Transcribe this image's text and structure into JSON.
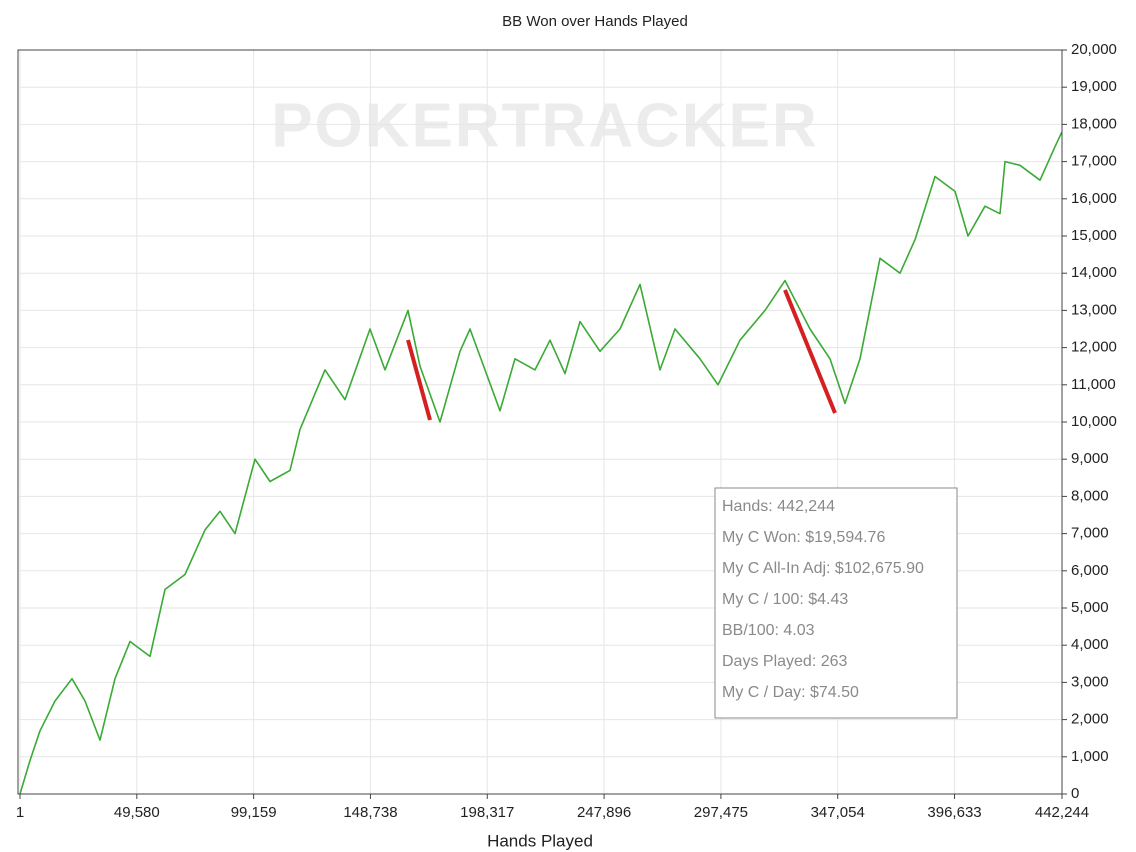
{
  "chart_data": {
    "type": "line",
    "title": "BB Won over Hands Played",
    "x_label": "Hands Played",
    "watermark": "POKERTRACKER",
    "stats": [
      "Hands: 442,244",
      "My C Won: $19,594.76",
      "My C All-In Adj: $102,675.90",
      "My C / 100: $4.43",
      "BB/100: 4.03",
      "Days Played: 263",
      "My C / Day: $74.50"
    ],
    "x": [
      1,
      4244,
      8488,
      14855,
      22070,
      27587,
      33954,
      40320,
      46686,
      55175,
      61541,
      70029,
      78518,
      84884,
      91250,
      99739,
      106105,
      114593,
      118837,
      129448,
      137937,
      148547,
      154914,
      164675,
      169768,
      178256,
      186745,
      190989,
      197355,
      203722,
      210088,
      218576,
      224943,
      231309,
      237675,
      246164,
      254652,
      263140,
      271629,
      277995,
      288606,
      296245,
      305583,
      316193,
      324681,
      335291,
      343780,
      350146,
      356513,
      365001,
      373490,
      379856,
      388344,
      396833,
      402350,
      409566,
      415932,
      418054,
      424420,
      432909,
      439275,
      442244
    ],
    "series": [
      {
        "name": "BB Won",
        "color": "#3aaa35",
        "values": [
          0,
          900,
          1700,
          2500,
          3100,
          2500,
          1450,
          3100,
          4100,
          3700,
          5500,
          5900,
          7100,
          7600,
          7000,
          9000,
          8400,
          8700,
          9800,
          11400,
          10600,
          12500,
          11400,
          13000,
          11500,
          10000,
          11900,
          12500,
          11400,
          10300,
          11700,
          11400,
          12200,
          11300,
          12700,
          11900,
          12500,
          13700,
          11400,
          12500,
          11700,
          11000,
          12200,
          13000,
          13800,
          12500,
          11700,
          10500,
          11700,
          14400,
          14000,
          14900,
          16600,
          16200,
          15000,
          15800,
          15600,
          17000,
          16900,
          16500,
          17400,
          17800
        ]
      }
    ],
    "xlim": [
      1,
      442244
    ],
    "xticks": [
      1,
      {
        "value": 49580,
        "label": "49,580"
      },
      {
        "value": 99159,
        "label": "99,159"
      },
      {
        "value": 148738,
        "label": "148,738"
      },
      {
        "value": 198317,
        "label": "198,317"
      },
      {
        "value": 247896,
        "label": "247,896"
      },
      {
        "value": 297475,
        "label": "297,475"
      },
      {
        "value": 347054,
        "label": "347,054"
      },
      {
        "value": 396633,
        "label": "396,633"
      },
      {
        "value": 442244,
        "label": "442,244"
      }
    ],
    "ylim": [
      0,
      20000
    ],
    "yticks": [
      0,
      {
        "value": 1000,
        "label": "1,000"
      },
      {
        "value": 2000,
        "label": "2,000"
      },
      {
        "value": 3000,
        "label": "3,000"
      },
      {
        "value": 4000,
        "label": "4,000"
      },
      {
        "value": 5000,
        "label": "5,000"
      },
      {
        "value": 6000,
        "label": "6,000"
      },
      {
        "value": 7000,
        "label": "7,000"
      },
      {
        "value": 8000,
        "label": "8,000"
      },
      {
        "value": 9000,
        "label": "9,000"
      },
      {
        "value": 10000,
        "label": "10,000"
      },
      {
        "value": 11000,
        "label": "11,000"
      },
      {
        "value": 12000,
        "label": "12,000"
      },
      {
        "value": 13000,
        "label": "13,000"
      },
      {
        "value": 14000,
        "label": "14,000"
      },
      {
        "value": 15000,
        "label": "15,000"
      },
      {
        "value": 16000,
        "label": "16,000"
      },
      {
        "value": 17000,
        "label": "17,000"
      },
      {
        "value": 18000,
        "label": "18,000"
      },
      {
        "value": 19000,
        "label": "19,000"
      },
      {
        "value": 20000,
        "label": "20,000"
      }
    ],
    "grid": true
  }
}
